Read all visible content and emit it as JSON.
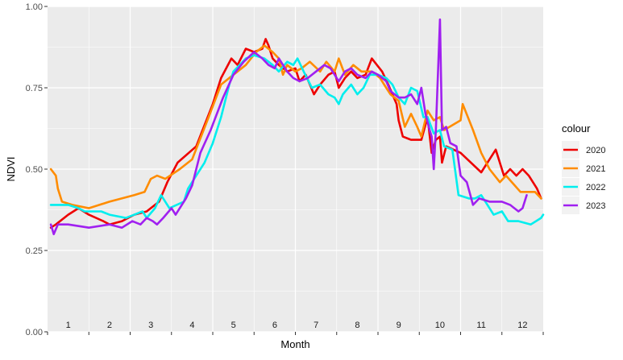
{
  "chart_data": {
    "type": "line",
    "title": "",
    "xlabel": "Month",
    "ylabel": "NDVI",
    "xlim": [
      0.5,
      12.5
    ],
    "ylim": [
      0,
      1
    ],
    "y_ticks": [
      0.0,
      0.25,
      0.5,
      0.75,
      1.0
    ],
    "y_tick_labels": [
      "0.00",
      "0.25",
      "0.50",
      "0.75",
      "1.00"
    ],
    "month_labels": [
      "1",
      "2",
      "3",
      "4",
      "5",
      "6",
      "7",
      "8",
      "9",
      "10",
      "11",
      "12"
    ],
    "grid": true,
    "legend_title": "colour",
    "legend_position": "right",
    "series": [
      {
        "name": "2020",
        "color": "#ee0000",
        "points": [
          [
            0.58,
            0.32
          ],
          [
            0.7,
            0.33
          ],
          [
            1.0,
            0.36
          ],
          [
            1.25,
            0.38
          ],
          [
            1.5,
            0.36
          ],
          [
            1.85,
            0.34
          ],
          [
            2.0,
            0.33
          ],
          [
            2.3,
            0.34
          ],
          [
            2.6,
            0.36
          ],
          [
            2.9,
            0.37
          ],
          [
            3.2,
            0.4
          ],
          [
            3.4,
            0.46
          ],
          [
            3.65,
            0.52
          ],
          [
            4.1,
            0.57
          ],
          [
            4.5,
            0.7
          ],
          [
            4.7,
            0.78
          ],
          [
            4.95,
            0.84
          ],
          [
            5.1,
            0.82
          ],
          [
            5.3,
            0.87
          ],
          [
            5.5,
            0.86
          ],
          [
            5.7,
            0.87
          ],
          [
            5.78,
            0.9
          ],
          [
            5.85,
            0.88
          ],
          [
            5.95,
            0.84
          ],
          [
            6.1,
            0.82
          ],
          [
            6.3,
            0.8
          ],
          [
            6.5,
            0.81
          ],
          [
            6.6,
            0.77
          ],
          [
            6.75,
            0.79
          ],
          [
            6.95,
            0.73
          ],
          [
            7.1,
            0.76
          ],
          [
            7.3,
            0.79
          ],
          [
            7.45,
            0.8
          ],
          [
            7.55,
            0.75
          ],
          [
            7.7,
            0.78
          ],
          [
            7.85,
            0.8
          ],
          [
            8.0,
            0.78
          ],
          [
            8.2,
            0.79
          ],
          [
            8.35,
            0.84
          ],
          [
            8.6,
            0.8
          ],
          [
            8.75,
            0.76
          ],
          [
            8.85,
            0.73
          ],
          [
            8.95,
            0.7
          ],
          [
            9.0,
            0.65
          ],
          [
            9.1,
            0.6
          ],
          [
            9.3,
            0.59
          ],
          [
            9.55,
            0.59
          ],
          [
            9.7,
            0.66
          ],
          [
            9.8,
            0.55
          ],
          [
            9.9,
            0.59
          ],
          [
            10.0,
            0.6
          ],
          [
            10.05,
            0.52
          ],
          [
            10.15,
            0.57
          ],
          [
            10.5,
            0.55
          ],
          [
            10.75,
            0.52
          ],
          [
            11.0,
            0.49
          ],
          [
            11.35,
            0.56
          ],
          [
            11.55,
            0.48
          ],
          [
            11.7,
            0.5
          ],
          [
            11.85,
            0.48
          ],
          [
            12.0,
            0.5
          ],
          [
            12.15,
            0.48
          ],
          [
            12.35,
            0.44
          ],
          [
            12.45,
            0.41
          ]
        ]
      },
      {
        "name": "2021",
        "color": "#ff8c00",
        "points": [
          [
            0.58,
            0.5
          ],
          [
            0.7,
            0.48
          ],
          [
            0.75,
            0.44
          ],
          [
            0.85,
            0.4
          ],
          [
            1.1,
            0.39
          ],
          [
            1.5,
            0.38
          ],
          [
            2.0,
            0.4
          ],
          [
            2.6,
            0.42
          ],
          [
            2.85,
            0.43
          ],
          [
            3.0,
            0.47
          ],
          [
            3.15,
            0.48
          ],
          [
            3.35,
            0.47
          ],
          [
            3.7,
            0.5
          ],
          [
            4.0,
            0.53
          ],
          [
            4.4,
            0.66
          ],
          [
            4.7,
            0.76
          ],
          [
            5.0,
            0.79
          ],
          [
            5.3,
            0.82
          ],
          [
            5.55,
            0.86
          ],
          [
            5.75,
            0.88
          ],
          [
            5.95,
            0.86
          ],
          [
            6.1,
            0.84
          ],
          [
            6.2,
            0.79
          ],
          [
            6.3,
            0.82
          ],
          [
            6.5,
            0.8
          ],
          [
            6.65,
            0.81
          ],
          [
            6.85,
            0.83
          ],
          [
            7.1,
            0.8
          ],
          [
            7.25,
            0.83
          ],
          [
            7.45,
            0.8
          ],
          [
            7.55,
            0.84
          ],
          [
            7.7,
            0.79
          ],
          [
            7.9,
            0.82
          ],
          [
            8.1,
            0.8
          ],
          [
            8.35,
            0.8
          ],
          [
            8.55,
            0.78
          ],
          [
            8.7,
            0.75
          ],
          [
            8.8,
            0.73
          ],
          [
            9.0,
            0.71
          ],
          [
            9.15,
            0.63
          ],
          [
            9.3,
            0.67
          ],
          [
            9.45,
            0.63
          ],
          [
            9.55,
            0.6
          ],
          [
            9.7,
            0.68
          ],
          [
            9.85,
            0.65
          ],
          [
            10.0,
            0.66
          ],
          [
            10.1,
            0.62
          ],
          [
            10.5,
            0.65
          ],
          [
            10.55,
            0.7
          ],
          [
            10.8,
            0.62
          ],
          [
            11.0,
            0.55
          ],
          [
            11.2,
            0.5
          ],
          [
            11.45,
            0.46
          ],
          [
            11.6,
            0.48
          ],
          [
            11.95,
            0.43
          ],
          [
            12.3,
            0.43
          ],
          [
            12.45,
            0.41
          ]
        ]
      },
      {
        "name": "2022",
        "color": "#00eeee",
        "points": [
          [
            0.58,
            0.39
          ],
          [
            1.0,
            0.39
          ],
          [
            1.25,
            0.38
          ],
          [
            1.4,
            0.37
          ],
          [
            1.6,
            0.37
          ],
          [
            1.8,
            0.37
          ],
          [
            2.0,
            0.36
          ],
          [
            2.4,
            0.35
          ],
          [
            2.6,
            0.36
          ],
          [
            2.8,
            0.37
          ],
          [
            2.9,
            0.35
          ],
          [
            3.1,
            0.38
          ],
          [
            3.25,
            0.42
          ],
          [
            3.45,
            0.38
          ],
          [
            3.8,
            0.4
          ],
          [
            3.9,
            0.44
          ],
          [
            4.1,
            0.48
          ],
          [
            4.3,
            0.52
          ],
          [
            4.5,
            0.58
          ],
          [
            4.7,
            0.66
          ],
          [
            4.9,
            0.76
          ],
          [
            5.0,
            0.8
          ],
          [
            5.3,
            0.84
          ],
          [
            5.5,
            0.85
          ],
          [
            5.75,
            0.84
          ],
          [
            5.95,
            0.82
          ],
          [
            6.1,
            0.8
          ],
          [
            6.3,
            0.83
          ],
          [
            6.45,
            0.82
          ],
          [
            6.55,
            0.84
          ],
          [
            6.7,
            0.8
          ],
          [
            6.9,
            0.75
          ],
          [
            7.1,
            0.76
          ],
          [
            7.3,
            0.73
          ],
          [
            7.45,
            0.72
          ],
          [
            7.55,
            0.7
          ],
          [
            7.65,
            0.73
          ],
          [
            7.85,
            0.76
          ],
          [
            8.0,
            0.73
          ],
          [
            8.15,
            0.75
          ],
          [
            8.3,
            0.79
          ],
          [
            8.5,
            0.79
          ],
          [
            8.7,
            0.78
          ],
          [
            8.85,
            0.76
          ],
          [
            9.0,
            0.72
          ],
          [
            9.15,
            0.7
          ],
          [
            9.3,
            0.75
          ],
          [
            9.45,
            0.74
          ],
          [
            9.6,
            0.66
          ],
          [
            9.7,
            0.66
          ],
          [
            9.85,
            0.61
          ],
          [
            10.0,
            0.62
          ],
          [
            10.1,
            0.57
          ],
          [
            10.3,
            0.56
          ],
          [
            10.45,
            0.42
          ],
          [
            10.7,
            0.41
          ],
          [
            10.85,
            0.41
          ],
          [
            11.0,
            0.42
          ],
          [
            11.15,
            0.39
          ],
          [
            11.3,
            0.36
          ],
          [
            11.5,
            0.37
          ],
          [
            11.65,
            0.34
          ],
          [
            11.9,
            0.34
          ],
          [
            12.2,
            0.33
          ],
          [
            12.45,
            0.35
          ],
          [
            12.5,
            0.36
          ]
        ]
      },
      {
        "name": "2023",
        "color": "#a020f0",
        "points": [
          [
            0.58,
            0.33
          ],
          [
            0.65,
            0.3
          ],
          [
            0.75,
            0.33
          ],
          [
            1.0,
            0.33
          ],
          [
            1.5,
            0.32
          ],
          [
            2.0,
            0.33
          ],
          [
            2.3,
            0.32
          ],
          [
            2.55,
            0.34
          ],
          [
            2.75,
            0.33
          ],
          [
            2.9,
            0.35
          ],
          [
            3.05,
            0.34
          ],
          [
            3.15,
            0.33
          ],
          [
            3.3,
            0.35
          ],
          [
            3.5,
            0.38
          ],
          [
            3.6,
            0.36
          ],
          [
            3.75,
            0.39
          ],
          [
            3.85,
            0.41
          ],
          [
            4.0,
            0.45
          ],
          [
            4.2,
            0.55
          ],
          [
            4.45,
            0.62
          ],
          [
            4.75,
            0.72
          ],
          [
            5.0,
            0.79
          ],
          [
            5.25,
            0.83
          ],
          [
            5.5,
            0.86
          ],
          [
            5.7,
            0.84
          ],
          [
            5.85,
            0.82
          ],
          [
            6.0,
            0.81
          ],
          [
            6.1,
            0.84
          ],
          [
            6.3,
            0.8
          ],
          [
            6.45,
            0.78
          ],
          [
            6.6,
            0.77
          ],
          [
            6.8,
            0.78
          ],
          [
            7.0,
            0.8
          ],
          [
            7.2,
            0.82
          ],
          [
            7.35,
            0.81
          ],
          [
            7.45,
            0.79
          ],
          [
            7.55,
            0.77
          ],
          [
            7.7,
            0.8
          ],
          [
            7.85,
            0.81
          ],
          [
            8.0,
            0.79
          ],
          [
            8.2,
            0.78
          ],
          [
            8.35,
            0.8
          ],
          [
            8.5,
            0.79
          ],
          [
            8.7,
            0.77
          ],
          [
            8.8,
            0.74
          ],
          [
            9.0,
            0.72
          ],
          [
            9.15,
            0.72
          ],
          [
            9.3,
            0.73
          ],
          [
            9.45,
            0.7
          ],
          [
            9.55,
            0.75
          ],
          [
            9.65,
            0.67
          ],
          [
            9.75,
            0.62
          ],
          [
            9.8,
            0.6
          ],
          [
            9.85,
            0.5
          ],
          [
            9.9,
            0.62
          ],
          [
            10.0,
            0.96
          ],
          [
            10.05,
            0.62
          ],
          [
            10.15,
            0.63
          ],
          [
            10.25,
            0.58
          ],
          [
            10.4,
            0.57
          ],
          [
            10.5,
            0.48
          ],
          [
            10.65,
            0.46
          ],
          [
            10.8,
            0.39
          ],
          [
            10.95,
            0.41
          ],
          [
            11.2,
            0.4
          ],
          [
            11.5,
            0.4
          ],
          [
            11.7,
            0.39
          ],
          [
            11.9,
            0.37
          ],
          [
            12.0,
            0.38
          ],
          [
            12.1,
            0.42
          ]
        ]
      }
    ]
  }
}
